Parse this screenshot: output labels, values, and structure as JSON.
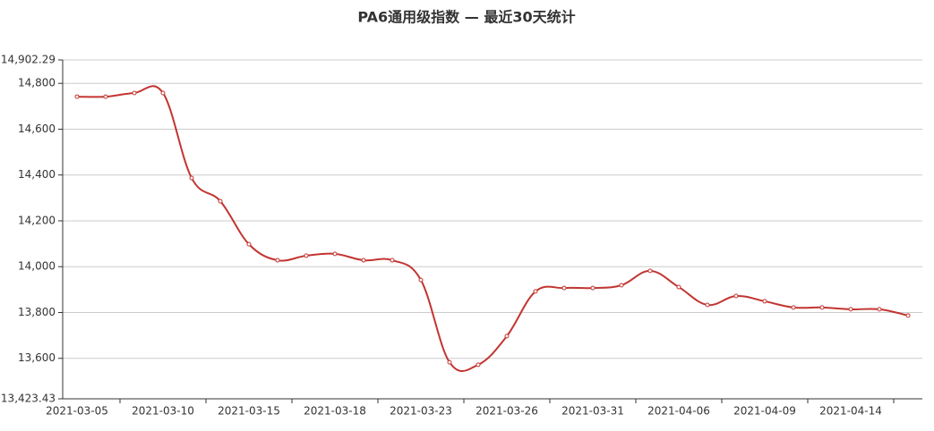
{
  "chart_data": {
    "type": "line",
    "title": "PA6通用级指数   —   最近30天统计",
    "categories": [
      "2021-03-05",
      null,
      null,
      "2021-03-10",
      null,
      null,
      "2021-03-15",
      null,
      null,
      "2021-03-18",
      null,
      null,
      "2021-03-23",
      null,
      null,
      "2021-03-26",
      null,
      null,
      "2021-03-31",
      null,
      null,
      "2021-04-06",
      null,
      null,
      "2021-04-09",
      null,
      null,
      "2021-04-14",
      null,
      null
    ],
    "series": [
      {
        "name": "PA6通用级指数",
        "color": "#c23531",
        "values": [
          14742,
          14742,
          14758,
          14758,
          14387,
          14286,
          14098,
          14028,
          14048,
          14056,
          14028,
          14028,
          13942,
          13583,
          13572,
          13697,
          13892,
          13907,
          13907,
          13919,
          13982,
          13911,
          13833,
          13872,
          13849,
          13822,
          13822,
          13814,
          13814,
          13787
        ]
      }
    ],
    "ylim": [
      13423.43,
      14902.29
    ],
    "yticks": [
      {
        "value": 13423.43,
        "label": "13,423.43"
      },
      {
        "value": 13600,
        "label": "13,600"
      },
      {
        "value": 13800,
        "label": "13,800"
      },
      {
        "value": 14000,
        "label": "14,000"
      },
      {
        "value": 14200,
        "label": "14,200"
      },
      {
        "value": 14400,
        "label": "14,400"
      },
      {
        "value": 14600,
        "label": "14,600"
      },
      {
        "value": 14800,
        "label": "14,800"
      },
      {
        "value": 14902.29,
        "label": "14,902.29"
      }
    ],
    "grid": true
  }
}
